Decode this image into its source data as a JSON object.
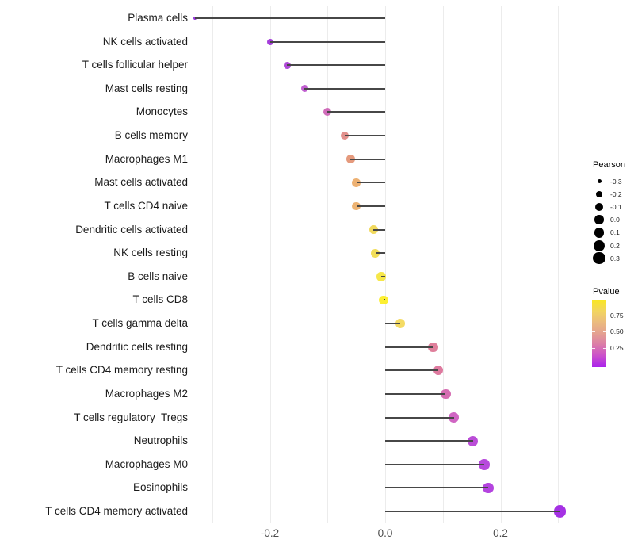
{
  "chart_data": {
    "type": "scatter",
    "subtype": "lollipop",
    "title": "",
    "xlabel": "",
    "ylabel": "",
    "xlim": [
      -0.335,
      0.35
    ],
    "x_ticks": [
      {
        "value": -0.2,
        "label": "-0.2"
      },
      {
        "value": 0.0,
        "label": "0.0"
      },
      {
        "value": 0.2,
        "label": "0.2"
      }
    ],
    "gridline_values": [
      -0.3,
      -0.2,
      -0.1,
      0.0,
      0.1,
      0.2,
      0.3
    ],
    "grid": "on",
    "categories": [
      "Plasma cells",
      "NK cells activated",
      "T cells follicular helper",
      "Mast cells resting",
      "Monocytes",
      "B cells memory",
      "Macrophages M1",
      "Mast cells activated",
      "T cells CD4 naive",
      "Dendritic cells activated",
      "NK cells resting",
      "B cells naive",
      "T cells CD8",
      "T cells gamma delta",
      "Dendritic cells resting",
      "T cells CD4 memory resting",
      "Macrophages M2",
      "T cells regulatory  Tregs",
      "Neutrophils",
      "Macrophages M0",
      "Eosinophils",
      "T cells CD4 memory activated"
    ],
    "series": [
      {
        "name": "Pearson",
        "values": [
          -0.33,
          -0.2,
          -0.17,
          -0.14,
          -0.1,
          -0.07,
          -0.06,
          -0.05,
          -0.05,
          -0.02,
          -0.017,
          -0.007,
          -0.003,
          0.026,
          0.083,
          0.092,
          0.105,
          0.119,
          0.152,
          0.172,
          0.179,
          0.303
        ]
      }
    ],
    "pvalue_colors": [
      "#8E24D8",
      "#9D2ED8",
      "#A93BD5",
      "#BC52CC",
      "#CC5FB4",
      "#E08782",
      "#E39172",
      "#EBAA67",
      "#EBAC66",
      "#F0D64F",
      "#F1DB4B",
      "#F5E53A",
      "#FCEE21",
      "#F3D857",
      "#DC7492",
      "#DB6F97",
      "#D362AB",
      "#CC58BE",
      "#B43ED4",
      "#B13BD9",
      "#AE34DC",
      "#9D1FE2"
    ],
    "stem_color": "#474747",
    "legend_position": "right",
    "legends": {
      "size_legend": {
        "title": "Pearson",
        "entries": [
          {
            "value": -0.3,
            "label": "-0.3"
          },
          {
            "value": -0.2,
            "label": "-0.2"
          },
          {
            "value": -0.1,
            "label": "-0.1"
          },
          {
            "value": 0.0,
            "label": "0.0"
          },
          {
            "value": 0.1,
            "label": "0.1"
          },
          {
            "value": 0.2,
            "label": "0.2"
          },
          {
            "value": 0.3,
            "label": "0.3"
          }
        ],
        "dot_color": "#000000"
      },
      "color_legend": {
        "title": "Pvalue",
        "tick_labels": [
          "0.75",
          "0.50",
          "0.25"
        ],
        "gradient_top_to_bottom": [
          "#F9E721",
          "#F2D560",
          "#EBBC7E",
          "#E4A090",
          "#DB7BA9",
          "#CB50CB",
          "#A922EC"
        ]
      }
    }
  }
}
